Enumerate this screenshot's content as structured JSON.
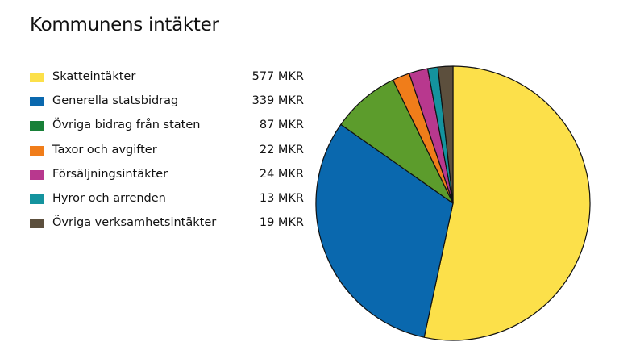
{
  "chart_data": {
    "type": "pie",
    "title": "Kommunens intäkter",
    "unit": "MKR",
    "start_angle": "top",
    "direction": "clockwise",
    "legend_position": "left",
    "slices": [
      {
        "label": "Skatteintäkter",
        "value": 577,
        "value_label": "577 MKR",
        "color": "#FCE04A",
        "legend_color": "#FCE04A"
      },
      {
        "label": "Generella statsbidrag",
        "value": 339,
        "value_label": "339 MKR",
        "color": "#0A68AE",
        "legend_color": "#0A68AE"
      },
      {
        "label": "Övriga bidrag från staten",
        "value": 87,
        "value_label": "87 MKR",
        "color": "#5C9C2C",
        "legend_color": "#188038"
      },
      {
        "label": "Taxor och avgifter",
        "value": 22,
        "value_label": "22 MKR",
        "color": "#F07D1A",
        "legend_color": "#F07D1A"
      },
      {
        "label": "Försäljningsintäkter",
        "value": 24,
        "value_label": "24 MKR",
        "color": "#B8388E",
        "legend_color": "#B8388E"
      },
      {
        "label": "Hyror och arrenden",
        "value": 13,
        "value_label": "13 MKR",
        "color": "#14939E",
        "legend_color": "#14939E"
      },
      {
        "label": "Övriga verksamhetsintäkter",
        "value": 19,
        "value_label": "19 MKR",
        "color": "#5C4F3D",
        "legend_color": "#5C4F3D"
      }
    ]
  }
}
